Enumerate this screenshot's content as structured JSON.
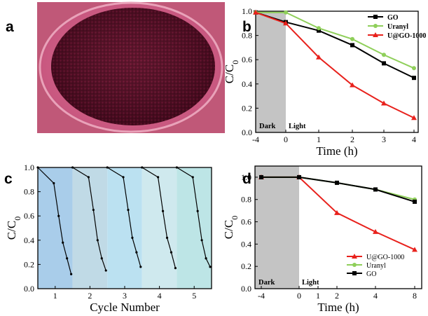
{
  "panels": {
    "a": {
      "label": "a"
    },
    "b": {
      "label": "b"
    },
    "c": {
      "label": "c"
    },
    "d": {
      "label": "d"
    }
  },
  "chart_data": [
    {
      "panel": "b",
      "type": "line",
      "x": [
        -4,
        0,
        1,
        2,
        3,
        4
      ],
      "xticks": [
        -4,
        0,
        1,
        2,
        3,
        4
      ],
      "xlim": [
        -4,
        4
      ],
      "ylim": [
        0,
        1.0
      ],
      "yticks": [
        0.0,
        0.2,
        0.4,
        0.6,
        0.8,
        1.0
      ],
      "xlabel": "Time (h)",
      "ylabel": "C/C0",
      "legend_position": "top-right",
      "dark_region": [
        -4,
        0
      ],
      "dark_label": "Dark",
      "light_label": "Light",
      "series": [
        {
          "name": "GO",
          "color": "#000000",
          "marker": "square",
          "values": [
            0.99,
            0.91,
            0.84,
            0.72,
            0.57,
            0.45
          ]
        },
        {
          "name": "Uranyl",
          "color": "#8fcf5a",
          "marker": "circle",
          "values": [
            0.99,
            0.99,
            0.86,
            0.77,
            0.64,
            0.53
          ]
        },
        {
          "name": "U@GO-1000",
          "color": "#e8211c",
          "marker": "triangle",
          "values": [
            0.99,
            0.9,
            0.62,
            0.39,
            0.24,
            0.12
          ]
        }
      ]
    },
    {
      "panel": "c",
      "type": "line",
      "xlim": [
        0.5,
        5.5
      ],
      "xticks": [
        1,
        2,
        3,
        4,
        5
      ],
      "ylim": [
        0,
        1.0
      ],
      "yticks": [
        0.0,
        0.2,
        0.4,
        0.6,
        0.8,
        1.0
      ],
      "xlabel": "Cycle Number",
      "ylabel": "C/C0",
      "band_colors": [
        "#a9cdea",
        "#c0dae6",
        "#bbe1f1",
        "#cfe9ee",
        "#bde5e6"
      ],
      "series": [
        {
          "name": "",
          "color": "#000000",
          "cycles": [
            {
              "x": [
                0.5,
                0.96,
                1.1,
                1.22,
                1.34,
                1.46
              ],
              "y": [
                1.0,
                0.87,
                0.6,
                0.38,
                0.25,
                0.12
              ]
            },
            {
              "x": [
                1.5,
                1.96,
                2.1,
                2.22,
                2.34,
                2.46
              ],
              "y": [
                1.0,
                0.92,
                0.65,
                0.4,
                0.25,
                0.15
              ]
            },
            {
              "x": [
                2.5,
                2.96,
                3.1,
                3.22,
                3.34,
                3.46
              ],
              "y": [
                1.0,
                0.92,
                0.65,
                0.42,
                0.3,
                0.18
              ]
            },
            {
              "x": [
                3.5,
                3.96,
                4.1,
                4.22,
                4.34,
                4.46
              ],
              "y": [
                1.0,
                0.92,
                0.64,
                0.42,
                0.3,
                0.17
              ]
            },
            {
              "x": [
                4.5,
                4.96,
                5.1,
                5.22,
                5.34,
                5.46
              ],
              "y": [
                1.0,
                0.92,
                0.64,
                0.4,
                0.25,
                0.18
              ]
            }
          ]
        }
      ]
    },
    {
      "panel": "d",
      "type": "line",
      "x": [
        -4,
        0,
        2,
        4,
        8
      ],
      "xticks": [
        -4,
        0,
        1,
        2,
        4,
        8
      ],
      "xlim": [
        -4.5,
        8.5
      ],
      "ylim": [
        0,
        1.1
      ],
      "yticks": [
        0.0,
        0.2,
        0.4,
        0.6,
        0.8,
        1.0
      ],
      "xlabel": "Time (h)",
      "ylabel": "C/C0",
      "legend_position": "bottom-right",
      "dark_region": [
        -4.5,
        0
      ],
      "dark_label": "Dark",
      "light_label": "Light",
      "series": [
        {
          "name": "U@GO-1000",
          "color": "#e8211c",
          "marker": "triangle",
          "values": [
            1.0,
            1.0,
            0.68,
            0.51,
            0.35
          ]
        },
        {
          "name": "Uranyl",
          "color": "#8fcf5a",
          "marker": "circle",
          "values": [
            1.0,
            1.0,
            0.95,
            0.89,
            0.8
          ]
        },
        {
          "name": "GO",
          "color": "#000000",
          "marker": "square",
          "values": [
            1.0,
            1.0,
            0.95,
            0.89,
            0.78
          ]
        }
      ]
    }
  ]
}
